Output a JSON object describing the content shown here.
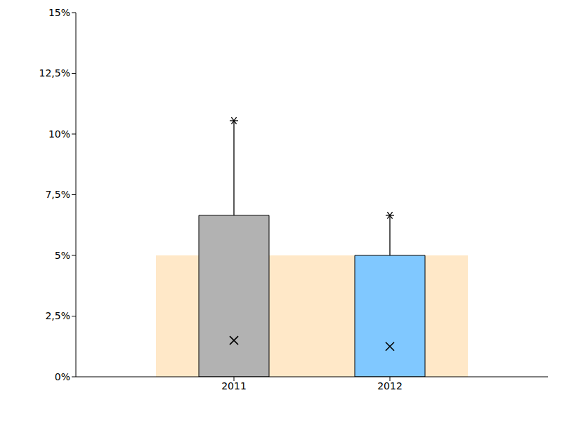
{
  "chart_data": {
    "type": "bar",
    "categories": [
      "2011",
      "2012"
    ],
    "series": [
      {
        "type": "bar",
        "values": [
          6.65,
          5
        ],
        "colors": [
          "#b2b2b2",
          "#80c8ff"
        ],
        "error_upper": [
          3.9,
          1.65
        ]
      },
      {
        "type": "scatter",
        "values": [
          1.5,
          1.25
        ],
        "marker": "x",
        "color": "#000000"
      }
    ],
    "ylim": [
      0,
      15
    ],
    "yticks": [
      {
        "value": 0,
        "label": "0%"
      },
      {
        "value": 2.5,
        "label": "2,5%"
      },
      {
        "value": 5,
        "label": "5%"
      },
      {
        "value": 7.5,
        "label": "7,5%"
      },
      {
        "value": 10,
        "label": "10%"
      },
      {
        "value": 12.5,
        "label": "12,5%"
      },
      {
        "value": 15,
        "label": "15%"
      }
    ],
    "shaded_range": [
      0,
      5
    ],
    "grid": false
  }
}
